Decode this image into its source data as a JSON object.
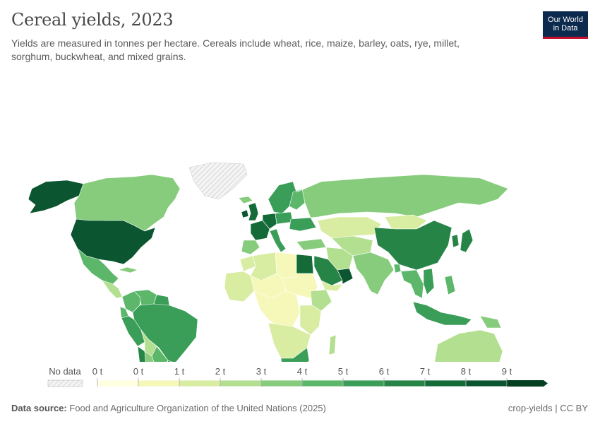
{
  "header": {
    "title": "Cereal yields, 2023",
    "subtitle": "Yields are measured in tonnes per hectare. Cereals include wheat, rice, maize, barley, oats, rye, millet, sorghum, buckwheat, and mixed grains."
  },
  "logo": {
    "line1": "Our World",
    "line2": "in Data",
    "bg": "#0c2a4e",
    "accent": "#c8102e"
  },
  "legend": {
    "no_data_label": "No data",
    "ticks": [
      "0 t",
      "0 t",
      "1 t",
      "2 t",
      "3 t",
      "4 t",
      "5 t",
      "6 t",
      "7 t",
      "8 t",
      "9 t"
    ],
    "colors": [
      "#ffffe0",
      "#f5f8b8",
      "#d8eda2",
      "#b3df91",
      "#86cc7c",
      "#5cb76a",
      "#3a9e58",
      "#268447",
      "#146b38",
      "#0b5530",
      "#054023"
    ]
  },
  "footer": {
    "source_label": "Data source:",
    "source_text": "Food and Agriculture Organization of the United Nations (2025)",
    "chart_id": "crop-yields | CC BY"
  },
  "chart_data": {
    "type": "choropleth",
    "title": "Cereal yields, 2023",
    "unit": "t",
    "regions": [
      {
        "name": "United States",
        "value": 8.5
      },
      {
        "name": "Canada",
        "value": 3.6
      },
      {
        "name": "Alaska",
        "value": 8.5
      },
      {
        "name": "Mexico",
        "value": 4.2
      },
      {
        "name": "Central America",
        "value": 2.5
      },
      {
        "name": "Cuba",
        "value": 3.0
      },
      {
        "name": "Colombia",
        "value": 4.5
      },
      {
        "name": "Venezuela",
        "value": 4.0
      },
      {
        "name": "Guyana",
        "value": 5.8
      },
      {
        "name": "Peru",
        "value": 5.0
      },
      {
        "name": "Ecuador",
        "value": 4.0
      },
      {
        "name": "Brazil",
        "value": 5.8
      },
      {
        "name": "Bolivia",
        "value": 2.5
      },
      {
        "name": "Paraguay",
        "value": 4.5
      },
      {
        "name": "Chile",
        "value": 6.8
      },
      {
        "name": "Argentina",
        "value": 3.8
      },
      {
        "name": "Uruguay",
        "value": 5.5
      },
      {
        "name": "Greenland",
        "value": null
      },
      {
        "name": "Iceland",
        "value": 3.0
      },
      {
        "name": "United Kingdom",
        "value": 7.8
      },
      {
        "name": "Ireland",
        "value": 8.5
      },
      {
        "name": "France",
        "value": 7.2
      },
      {
        "name": "Germany",
        "value": 7.0
      },
      {
        "name": "Spain",
        "value": 3.8
      },
      {
        "name": "Italy",
        "value": 5.5
      },
      {
        "name": "Scandinavia",
        "value": 5.2
      },
      {
        "name": "Finland",
        "value": 4.0
      },
      {
        "name": "Poland",
        "value": 5.2
      },
      {
        "name": "Ukraine",
        "value": 5.0
      },
      {
        "name": "Turkey",
        "value": 3.4
      },
      {
        "name": "Russia",
        "value": 3.0
      },
      {
        "name": "Kazakhstan",
        "value": 1.4
      },
      {
        "name": "Mongolia",
        "value": 1.5
      },
      {
        "name": "China",
        "value": 6.3
      },
      {
        "name": "Korea",
        "value": 6.5
      },
      {
        "name": "Japan",
        "value": 6.2
      },
      {
        "name": "Middle Asia",
        "value": 2.5
      },
      {
        "name": "Iran",
        "value": 2.4
      },
      {
        "name": "Saudi Arabia",
        "value": 6.0
      },
      {
        "name": "Oman",
        "value": 8.0
      },
      {
        "name": "Yemen",
        "value": 1.0
      },
      {
        "name": "India",
        "value": 3.4
      },
      {
        "name": "Bangladesh",
        "value": 4.8
      },
      {
        "name": "Southeast Asia",
        "value": 4.5
      },
      {
        "name": "Vietnam",
        "value": 5.8
      },
      {
        "name": "Philippines",
        "value": 4.2
      },
      {
        "name": "Indonesia",
        "value": 5.5
      },
      {
        "name": "Papua New Guinea",
        "value": 3.8
      },
      {
        "name": "Australia",
        "value": 2.6
      },
      {
        "name": "New Zealand",
        "value": 7.5
      },
      {
        "name": "Morocco",
        "value": 1.2
      },
      {
        "name": "Algeria",
        "value": 1.5
      },
      {
        "name": "Libya",
        "value": 0.7
      },
      {
        "name": "Egypt",
        "value": 7.2
      },
      {
        "name": "West Africa",
        "value": 1.3
      },
      {
        "name": "Sahel",
        "value": 0.7
      },
      {
        "name": "Sudan",
        "value": 0.6
      },
      {
        "name": "Ethiopia",
        "value": 2.8
      },
      {
        "name": "Central Africa",
        "value": 0.9
      },
      {
        "name": "East Africa",
        "value": 1.6
      },
      {
        "name": "Southern Africa",
        "value": 1.0
      },
      {
        "name": "Madagascar",
        "value": 2.8
      },
      {
        "name": "South Africa",
        "value": 5.8
      }
    ]
  }
}
